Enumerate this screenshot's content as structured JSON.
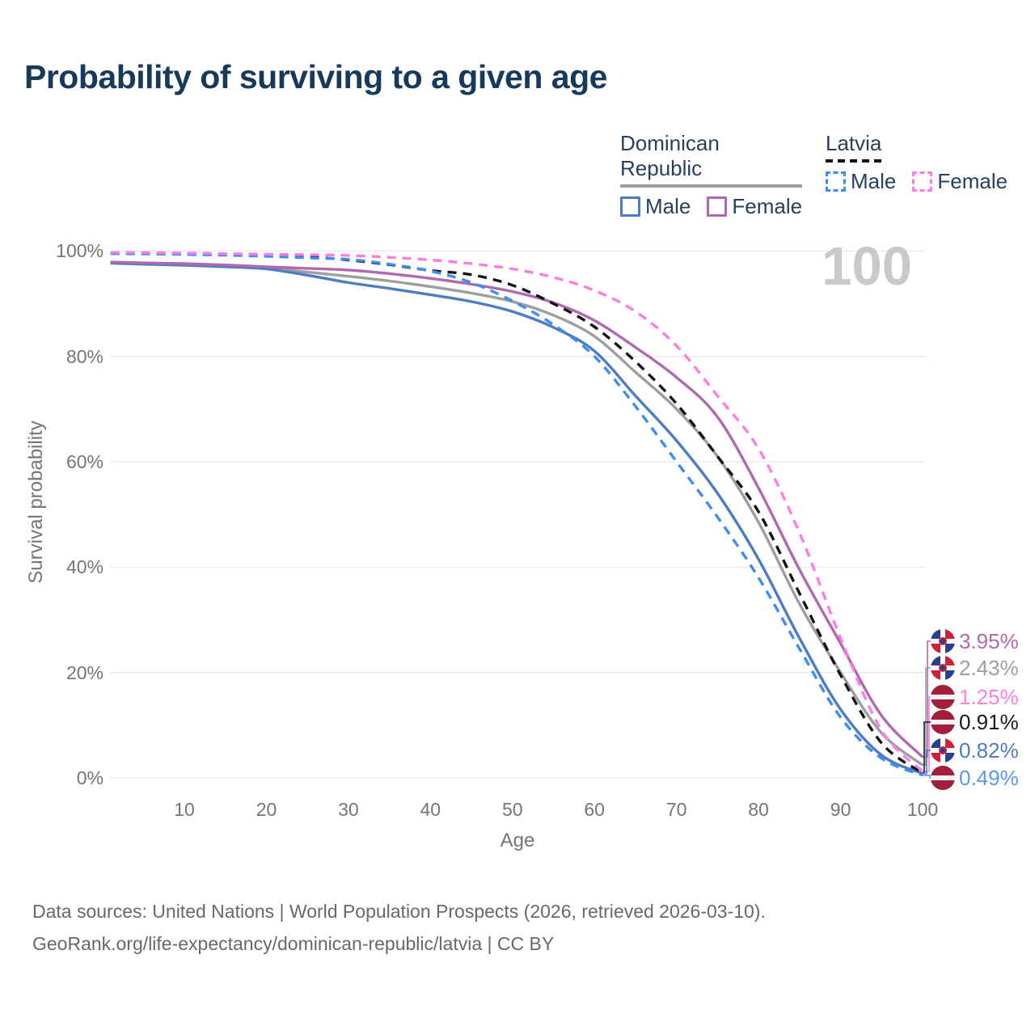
{
  "title": "Probability of surviving to a given age",
  "watermark": "100",
  "legend": {
    "groups": [
      {
        "label": "Dominican Republic",
        "line_style": "solid",
        "underline_color": "#9e9e9e",
        "items": [
          {
            "label": "Male",
            "color": "#4d7cc4",
            "dashed": false
          },
          {
            "label": "Female",
            "color": "#b069b0",
            "dashed": false
          }
        ]
      },
      {
        "label": "Latvia",
        "line_style": "dashed",
        "underline_color": "#141414",
        "items": [
          {
            "label": "Male",
            "color": "#3d8df5",
            "dashed": true
          },
          {
            "label": "Female",
            "color": "#ff7ce0",
            "dashed": true
          }
        ]
      }
    ]
  },
  "chart_data": {
    "type": "line",
    "title": "Probability of surviving to a given age",
    "xlabel": "Age",
    "ylabel": "Survival probability",
    "xlim": [
      1,
      100
    ],
    "ylim": [
      0,
      100
    ],
    "grid": "horizontal",
    "legend_position": "top-right",
    "x_ticks": [
      10,
      20,
      30,
      40,
      50,
      60,
      70,
      80,
      90,
      100
    ],
    "y_ticks": [
      0,
      20,
      40,
      60,
      80,
      100
    ],
    "y_tick_labels": [
      "0%",
      "20%",
      "40%",
      "60%",
      "80%",
      "100%"
    ],
    "ages": [
      1,
      5,
      10,
      15,
      20,
      25,
      30,
      35,
      40,
      45,
      50,
      55,
      60,
      65,
      70,
      75,
      80,
      85,
      90,
      95,
      100
    ],
    "series": [
      {
        "id": "dr-male",
        "name": "Dominican Republic Male",
        "color": "#4d7cc4",
        "dash": false,
        "end_value_pct": 0.82,
        "values": [
          97.7,
          97.5,
          97.3,
          97.0,
          96.6,
          95.4,
          94.0,
          92.9,
          91.7,
          90.4,
          88.5,
          85.5,
          81.0,
          72.5,
          64.0,
          54.0,
          41.5,
          26.5,
          13.0,
          4.3,
          0.82
        ]
      },
      {
        "id": "dr-female",
        "name": "Dominican Republic Female",
        "color": "#b069b0",
        "dash": false,
        "end_value_pct": 3.95,
        "values": [
          97.9,
          97.75,
          97.6,
          97.35,
          97.0,
          96.7,
          96.4,
          95.7,
          94.8,
          93.7,
          92.3,
          90.2,
          86.8,
          81.7,
          76.0,
          68.5,
          55.0,
          39.5,
          25.5,
          11.8,
          3.95
        ]
      },
      {
        "id": "dr-both",
        "name": "Dominican Republic (both sexes)",
        "color": "#9e9e9e",
        "dash": false,
        "end_value_pct": 2.43,
        "values": [
          97.8,
          97.6,
          97.45,
          97.15,
          96.8,
          96.0,
          95.2,
          94.3,
          93.25,
          92.0,
          90.4,
          87.8,
          83.8,
          77.0,
          70.0,
          61.0,
          48.5,
          33.0,
          20.0,
          8.5,
          2.43
        ]
      },
      {
        "id": "lv-male",
        "name": "Latvia Male",
        "color": "#3d8df5",
        "dash": true,
        "end_value_pct": 0.49,
        "values": [
          99.5,
          99.45,
          99.35,
          99.2,
          99.0,
          98.7,
          98.4,
          97.5,
          96.2,
          94.0,
          90.5,
          86.0,
          80.0,
          70.5,
          60.0,
          49.5,
          38.0,
          24.5,
          11.5,
          3.7,
          0.49
        ]
      },
      {
        "id": "lv-female",
        "name": "Latvia Female",
        "color": "#ff7ce0",
        "dash": true,
        "end_value_pct": 1.25,
        "values": [
          99.7,
          99.68,
          99.6,
          99.5,
          99.4,
          99.3,
          99.15,
          98.8,
          98.3,
          97.6,
          96.6,
          95.0,
          92.5,
          88.5,
          82.0,
          72.5,
          62.5,
          46.5,
          26.5,
          9.0,
          1.25
        ]
      },
      {
        "id": "lv-both",
        "name": "Latvia (both sexes)",
        "color": "#141414",
        "dash": true,
        "end_value_pct": 0.91,
        "values": [
          99.6,
          99.55,
          99.45,
          99.35,
          99.2,
          98.9,
          98.3,
          97.4,
          96.3,
          95.5,
          93.5,
          90.0,
          85.6,
          79.0,
          71.0,
          61.0,
          50.5,
          35.0,
          19.5,
          6.6,
          0.91
        ]
      }
    ],
    "end_labels": [
      {
        "text": "3.95%",
        "series": "dr-female",
        "flag": "dominican-republic",
        "color": "#b069b0"
      },
      {
        "text": "2.43%",
        "series": "dr-both",
        "flag": "dominican-republic",
        "color": "#9e9e9e"
      },
      {
        "text": "1.25%",
        "series": "lv-female",
        "flag": "latvia",
        "color": "#ff7ce0"
      },
      {
        "text": "0.91%",
        "series": "lv-both",
        "flag": "latvia",
        "color": "#1a1a1a"
      },
      {
        "text": "0.82%",
        "series": "dr-male",
        "flag": "dominican-republic",
        "color": "#4d7cc4"
      },
      {
        "text": "0.49%",
        "series": "lv-male",
        "flag": "latvia",
        "color": "#5b97f7"
      }
    ]
  },
  "footer": {
    "line1": "Data sources: United Nations | World Population Prospects (2026, retrieved 2026-03-10).",
    "line2": "GeoRank.org/life-expectancy/dominican-republic/latvia | CC BY"
  },
  "colors": {
    "title": "#173a5c",
    "text": "#26415f",
    "axis": "#757575",
    "grid": "#e9e9e9",
    "watermark": "#c9c9c9",
    "footer": "#686868",
    "background": "#ffffff",
    "flag_dr_blue": "#27418f",
    "flag_dr_red": "#ce2138",
    "flag_lv_red": "#a31e39"
  }
}
